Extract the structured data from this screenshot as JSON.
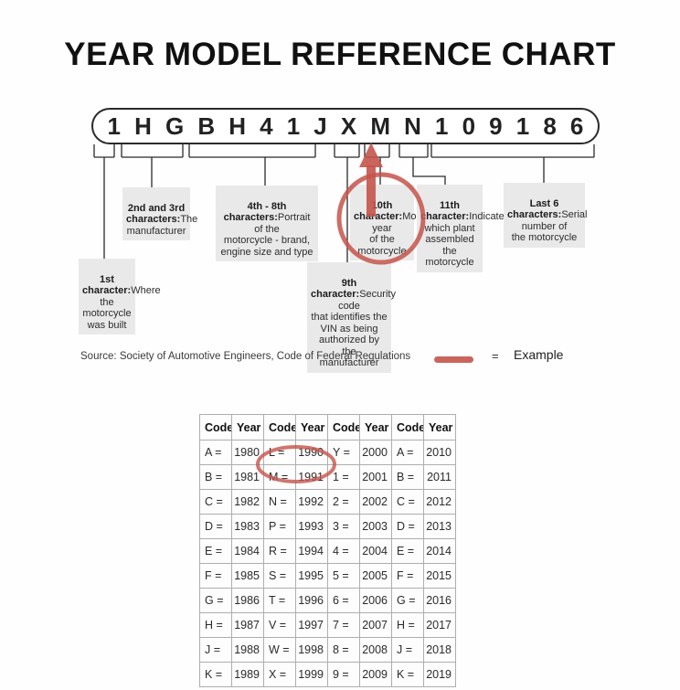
{
  "title": "YEAR MODEL REFERENCE CHART",
  "vin": {
    "characters": [
      {
        "ch": "1"
      },
      {
        "ch": "H"
      },
      {
        "ch": "G"
      },
      {
        "ch": "B"
      },
      {
        "ch": "H"
      },
      {
        "ch": "4"
      },
      {
        "ch": "1"
      },
      {
        "ch": "J"
      },
      {
        "ch": "X"
      },
      {
        "ch": "M"
      },
      {
        "ch": "N"
      },
      {
        "ch": "1"
      },
      {
        "ch": "0"
      },
      {
        "ch": "9"
      },
      {
        "ch": "1"
      },
      {
        "ch": "8"
      },
      {
        "ch": "6"
      }
    ],
    "highlighted_character": "M"
  },
  "callouts": {
    "first": {
      "title": "1st\ncharacter:",
      "body": "Where the\nmotorcycle\nwas built"
    },
    "second_third": {
      "title": "2nd and 3rd\ncharacters:",
      "body": "The\nmanufacturer"
    },
    "fourth_eighth": {
      "title": "4th - 8th\ncharacters:",
      "body": "Portrait of the\nmotorcycle - brand,\nengine size and type"
    },
    "ninth": {
      "title": "9th character:",
      "body": "Security code\nthat identifies the\nVIN as being\nauthorized by the\nmanufacturer"
    },
    "tenth": {
      "title": "10th\ncharacter:",
      "body": "Model year\nof the\nmotorcycle"
    },
    "eleventh": {
      "title": "11th\ncharacter:",
      "body": "Indicates\nwhich plant\nassembled\nthe\nmotorcycle"
    },
    "last_six": {
      "title": "Last 6\ncharacters:",
      "body": "Serial number of\nthe motorcycle"
    }
  },
  "source_line": "Source:  Society of Automotive Engineers, Code of Federal Regulations",
  "legend": {
    "equals": "=",
    "label": "Example"
  },
  "colors": {
    "highlight": "#c4544b",
    "callout_bg": "#e9e9e9",
    "grid": "#aeaeae"
  },
  "year_table": {
    "headers": [
      "Code",
      "Year",
      "Code",
      "Year",
      "Code",
      "Year",
      "Code",
      "Year"
    ],
    "rows": [
      {
        "cells": [
          "A =",
          "1980",
          "L =",
          "1990",
          "Y =",
          "2000",
          "A =",
          "2010"
        ]
      },
      {
        "cells": [
          "B =",
          "1981",
          "M =",
          "1991",
          "1 =",
          "2001",
          "B =",
          "2011"
        ]
      },
      {
        "cells": [
          "C =",
          "1982",
          "N =",
          "1992",
          "2 =",
          "2002",
          "C =",
          "2012"
        ]
      },
      {
        "cells": [
          "D =",
          "1983",
          "P =",
          "1993",
          "3 =",
          "2003",
          "D =",
          "2013"
        ]
      },
      {
        "cells": [
          "E =",
          "1984",
          "R =",
          "1994",
          "4 =",
          "2004",
          "E =",
          "2014"
        ]
      },
      {
        "cells": [
          "F =",
          "1985",
          "S =",
          "1995",
          "5 =",
          "2005",
          "F =",
          "2015"
        ]
      },
      {
        "cells": [
          "G =",
          "1986",
          "T =",
          "1996",
          "6 =",
          "2006",
          "G =",
          "2016"
        ]
      },
      {
        "cells": [
          "H =",
          "1987",
          "V =",
          "1997",
          "7 =",
          "2007",
          "H =",
          "2017"
        ]
      },
      {
        "cells": [
          "J =",
          "1988",
          "W =",
          "1998",
          "8 =",
          "2008",
          "J =",
          "2018"
        ]
      },
      {
        "cells": [
          "K =",
          "1989",
          "X =",
          "1999",
          "9 =",
          "2009",
          "K =",
          "2019"
        ]
      }
    ],
    "circled_code": "M =",
    "circled_year": "1991"
  }
}
